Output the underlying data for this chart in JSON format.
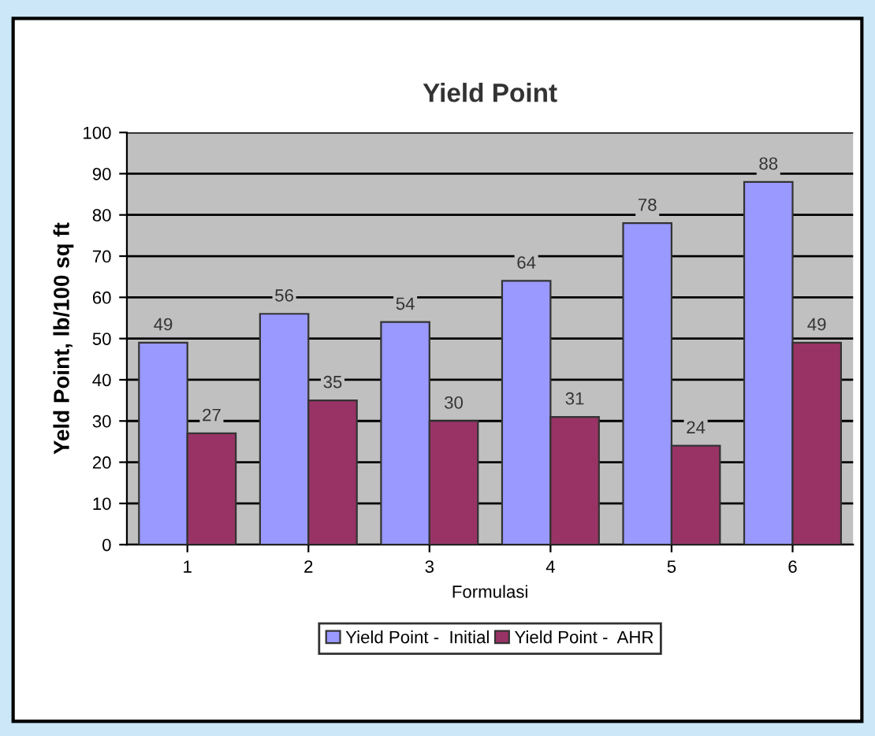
{
  "chart_data": {
    "type": "bar",
    "title": "Yield Point",
    "xlabel": "Formulasi",
    "ylabel": "Yeld Point, lb/100 sq ft",
    "categories": [
      "1",
      "2",
      "3",
      "4",
      "5",
      "6"
    ],
    "series": [
      {
        "name": "Yield Point -  Initial",
        "color": "#9999ff",
        "values": [
          49,
          56,
          54,
          64,
          78,
          88
        ]
      },
      {
        "name": "Yield Point -  AHR",
        "color": "#993366",
        "values": [
          27,
          35,
          30,
          31,
          24,
          49
        ]
      }
    ],
    "ylim": [
      0,
      100
    ],
    "yticks": [
      0,
      10,
      20,
      30,
      40,
      50,
      60,
      70,
      80,
      90,
      100
    ],
    "grid": "y",
    "legend": "bottom",
    "data_labels": true
  }
}
